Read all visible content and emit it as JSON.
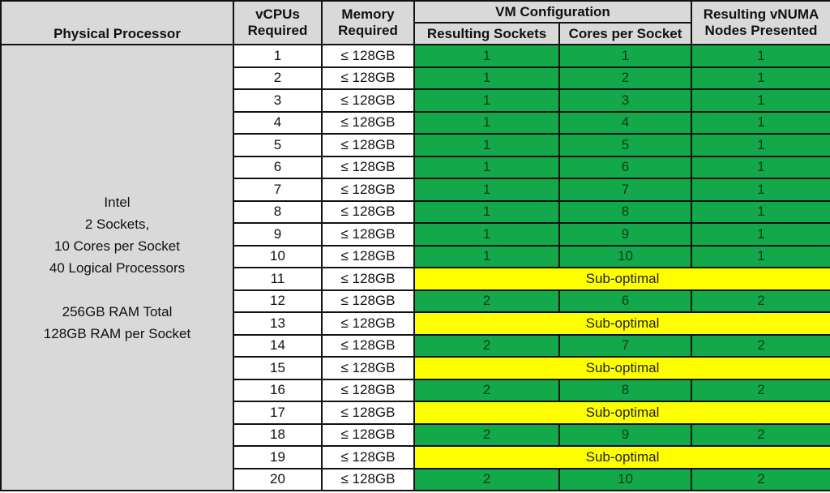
{
  "headers": {
    "physical_processor": "Physical Processor",
    "vcpus_line1": "vCPUs",
    "vcpus_line2": "Required",
    "memory_line1": "Memory",
    "memory_line2": "Required",
    "vm_configuration": "VM Configuration",
    "resulting_sockets": "Resulting Sockets",
    "cores_per_socket": "Cores per Socket",
    "vnuma_line1": "Resulting vNUMA",
    "vnuma_line2": "Nodes Presented"
  },
  "processor": {
    "lines": [
      "Intel",
      "2 Sockets,",
      "10 Cores per Socket",
      "40 Logical Processors",
      "",
      "256GB RAM Total",
      "128GB RAM per Socket"
    ]
  },
  "colors": {
    "optimal": "#13a84a",
    "suboptimal": "#ffff00",
    "header": "#d9d9d9"
  },
  "rows": [
    {
      "vcpus": "1",
      "memory": "≤ 128GB",
      "sockets": "1",
      "cores": "1",
      "vnuma": "1"
    },
    {
      "vcpus": "2",
      "memory": "≤ 128GB",
      "sockets": "1",
      "cores": "2",
      "vnuma": "1"
    },
    {
      "vcpus": "3",
      "memory": "≤ 128GB",
      "sockets": "1",
      "cores": "3",
      "vnuma": "1"
    },
    {
      "vcpus": "4",
      "memory": "≤ 128GB",
      "sockets": "1",
      "cores": "4",
      "vnuma": "1"
    },
    {
      "vcpus": "5",
      "memory": "≤ 128GB",
      "sockets": "1",
      "cores": "5",
      "vnuma": "1"
    },
    {
      "vcpus": "6",
      "memory": "≤ 128GB",
      "sockets": "1",
      "cores": "6",
      "vnuma": "1"
    },
    {
      "vcpus": "7",
      "memory": "≤ 128GB",
      "sockets": "1",
      "cores": "7",
      "vnuma": "1"
    },
    {
      "vcpus": "8",
      "memory": "≤ 128GB",
      "sockets": "1",
      "cores": "8",
      "vnuma": "1"
    },
    {
      "vcpus": "9",
      "memory": "≤ 128GB",
      "sockets": "1",
      "cores": "9",
      "vnuma": "1"
    },
    {
      "vcpus": "10",
      "memory": "≤ 128GB",
      "sockets": "1",
      "cores": "10",
      "vnuma": "1"
    },
    {
      "vcpus": "11",
      "memory": "≤ 128GB",
      "status": "Sub-optimal"
    },
    {
      "vcpus": "12",
      "memory": "≤ 128GB",
      "sockets": "2",
      "cores": "6",
      "vnuma": "2"
    },
    {
      "vcpus": "13",
      "memory": "≤ 128GB",
      "status": "Sub-optimal"
    },
    {
      "vcpus": "14",
      "memory": "≤ 128GB",
      "sockets": "2",
      "cores": "7",
      "vnuma": "2"
    },
    {
      "vcpus": "15",
      "memory": "≤ 128GB",
      "status": "Sub-optimal"
    },
    {
      "vcpus": "16",
      "memory": "≤ 128GB",
      "sockets": "2",
      "cores": "8",
      "vnuma": "2"
    },
    {
      "vcpus": "17",
      "memory": "≤ 128GB",
      "status": "Sub-optimal"
    },
    {
      "vcpus": "18",
      "memory": "≤ 128GB",
      "sockets": "2",
      "cores": "9",
      "vnuma": "2"
    },
    {
      "vcpus": "19",
      "memory": "≤ 128GB",
      "status": "Sub-optimal"
    },
    {
      "vcpus": "20",
      "memory": "≤ 128GB",
      "sockets": "2",
      "cores": "10",
      "vnuma": "2"
    }
  ]
}
